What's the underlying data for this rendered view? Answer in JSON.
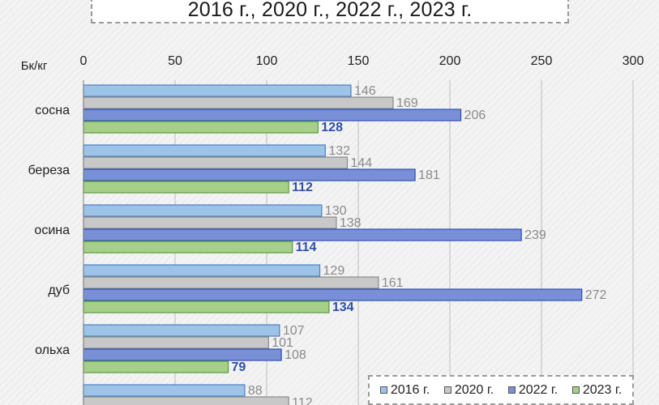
{
  "title": "2016 г., 2020 г., 2022 г., 2023 г.",
  "chart_data": {
    "type": "bar",
    "orientation": "horizontal",
    "title": "2016 г., 2020 г., 2022 г., 2023 г.",
    "unit_label": "Бк/кг",
    "xlim": [
      0,
      300
    ],
    "x_ticks": [
      "0",
      "50",
      "100",
      "150",
      "200",
      "250",
      "300"
    ],
    "x_axis_position": "top",
    "grid": true,
    "legend_position": "bottom-right",
    "categories": [
      "сосна",
      "береза",
      "осина",
      "дуб",
      "ольха",
      ""
    ],
    "series": [
      {
        "name": "2016 г.",
        "color": "#9dc3e6",
        "values": [
          146,
          132,
          130,
          129,
          107,
          88
        ]
      },
      {
        "name": "2020 г.",
        "color": "#c8c8c8",
        "values": [
          169,
          144,
          138,
          161,
          101,
          112
        ]
      },
      {
        "name": "2022 г.",
        "color": "#7a90d6",
        "values": [
          206,
          181,
          239,
          272,
          108,
          null
        ]
      },
      {
        "name": "2023 г.",
        "color": "#a6d08a",
        "values": [
          128,
          112,
          114,
          134,
          79,
          null
        ]
      }
    ]
  }
}
